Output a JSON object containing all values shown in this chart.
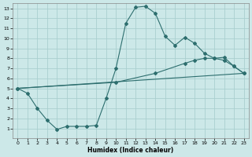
{
  "xlabel": "Humidex (Indice chaleur)",
  "bg_color": "#cce8e8",
  "grid_color": "#aacfcf",
  "line_color": "#2d6e6e",
  "xlim": [
    -0.5,
    23.5
  ],
  "ylim": [
    0,
    13.5
  ],
  "xticks": [
    0,
    1,
    2,
    3,
    4,
    5,
    6,
    7,
    8,
    9,
    10,
    11,
    12,
    13,
    14,
    15,
    16,
    17,
    18,
    19,
    20,
    21,
    22,
    23
  ],
  "yticks": [
    1,
    2,
    3,
    4,
    5,
    6,
    7,
    8,
    9,
    10,
    11,
    12,
    13
  ],
  "line1_x": [
    0,
    1,
    2,
    3,
    4,
    5,
    6,
    7,
    8,
    9,
    10,
    11,
    12,
    13,
    14,
    15,
    16,
    17,
    18,
    19,
    20,
    21,
    22,
    23
  ],
  "line1_y": [
    5.0,
    4.5,
    3.0,
    1.8,
    0.9,
    1.2,
    1.2,
    1.2,
    1.3,
    4.0,
    7.0,
    11.5,
    13.1,
    13.2,
    12.5,
    10.2,
    9.3,
    10.1,
    9.5,
    8.5,
    8.0,
    7.8,
    7.2,
    6.5
  ],
  "line2_x": [
    0,
    10,
    14,
    17,
    18,
    19,
    20,
    21,
    22,
    23
  ],
  "line2_y": [
    5.0,
    5.6,
    6.5,
    7.5,
    7.8,
    8.0,
    8.0,
    8.1,
    7.2,
    6.5
  ],
  "line3_x": [
    0,
    23
  ],
  "line3_y": [
    5.0,
    6.5
  ]
}
